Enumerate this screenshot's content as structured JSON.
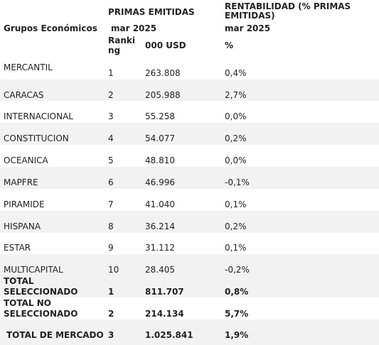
{
  "header": {
    "primas_title": "PRIMAS EMITIDAS",
    "rent_title_line1": "RENTABILIDAD (% PRIMAS",
    "rent_title_line2": "EMITIDAS)",
    "groups_label": "Grupos Económicos",
    "primas_period": "mar 2025",
    "rent_period": "mar 2025",
    "ranking_line1": "Ranki",
    "ranking_line2": "ng",
    "units_label": "000 USD",
    "pct_label": "%"
  },
  "rows": [
    {
      "name": "MERCANTIL",
      "rank": "1",
      "value": "263.808",
      "pct": "0,4%"
    },
    {
      "name": "CARACAS",
      "rank": "2",
      "value": "205.988",
      "pct": "2,7%"
    },
    {
      "name": "INTERNACIONAL",
      "rank": "3",
      "value": "55.258",
      "pct": "0,0%"
    },
    {
      "name": "CONSTITUCION",
      "rank": "4",
      "value": "54.077",
      "pct": "0,2%"
    },
    {
      "name": "OCEANICA",
      "rank": "5",
      "value": "48.810",
      "pct": "0,0%"
    },
    {
      "name": "MAPFRE",
      "rank": "6",
      "value": "46.996",
      "pct": "-0,1%"
    },
    {
      "name": "PIRAMIDE",
      "rank": "7",
      "value": "41.040",
      "pct": "0,1%"
    },
    {
      "name": "HISPANA",
      "rank": "8",
      "value": "36.214",
      "pct": "0,2%"
    },
    {
      "name": "ESTAR",
      "rank": "9",
      "value": "31.112",
      "pct": "0,1%"
    },
    {
      "name": "MULTICAPITAL",
      "rank": "10",
      "value": "28.405",
      "pct": "-0,2%"
    }
  ],
  "totals": [
    {
      "name_line1": "TOTAL",
      "name_line2": "SELECCIONADO",
      "rank": "1",
      "value": "811.707",
      "pct": "0,8%"
    },
    {
      "name_line1": "TOTAL NO",
      "name_line2": "SELECCIONADO",
      "rank": "2",
      "value": "214.134",
      "pct": "5,7%"
    },
    {
      "name_line1": "TOTAL DE MERCADO",
      "name_line2": "",
      "rank": "3",
      "value": "1.025.841",
      "pct": "1,9%"
    }
  ]
}
